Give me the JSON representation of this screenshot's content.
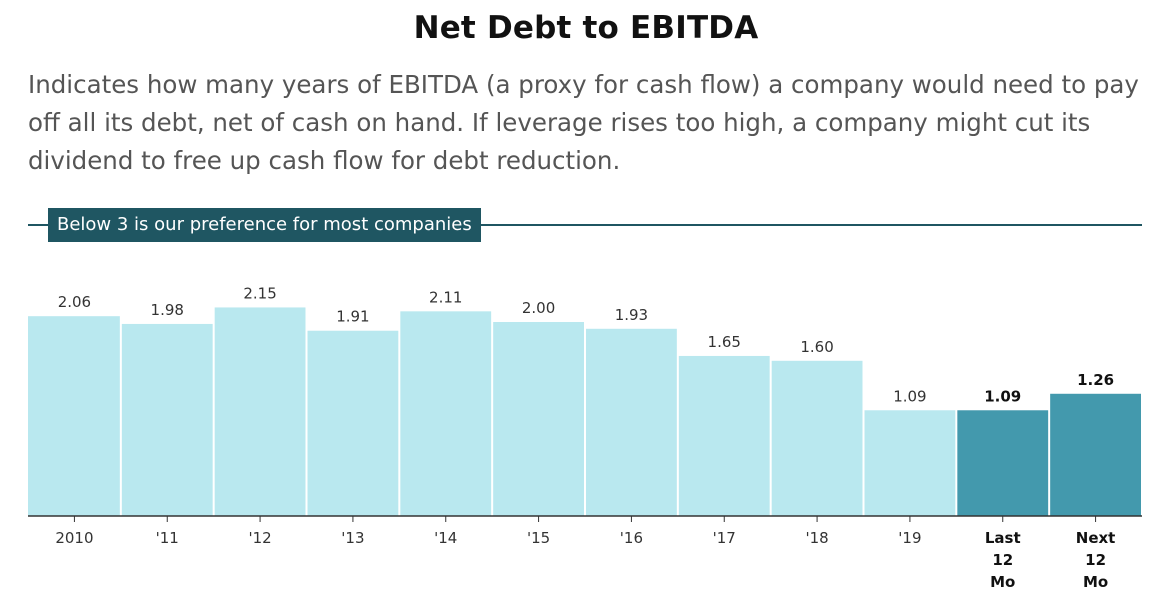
{
  "title": "Net Debt to EBITDA",
  "subtitle": "Indicates how many years of EBITDA (a proxy for cash flow) a company would need to pay off all its debt, net of cash on hand. If leverage rises too high, a company might cut its dividend to free up cash flow for debt reduction.",
  "reference": {
    "label": "Below 3 is our preference for most companies",
    "value": 3
  },
  "colors": {
    "historical_bar": "#b9e8ef",
    "projected_bar": "#4399ad",
    "reference": "#1f5662",
    "axis": "#333333"
  },
  "chart_data": {
    "type": "bar",
    "title": "Net Debt to EBITDA",
    "categories": [
      "2010",
      "'11",
      "'12",
      "'13",
      "'14",
      "'15",
      "'16",
      "'17",
      "'18",
      "'19",
      "Last 12 Mo",
      "Next 12 Mo"
    ],
    "values": [
      2.06,
      1.98,
      2.15,
      1.91,
      2.11,
      2.0,
      1.93,
      1.65,
      1.6,
      1.09,
      1.09,
      1.26
    ],
    "data_labels": [
      "2.06",
      "1.98",
      "2.15",
      "1.91",
      "2.11",
      "2.00",
      "1.93",
      "1.65",
      "1.60",
      "1.09",
      "1.09",
      "1.26"
    ],
    "highlighted": [
      false,
      false,
      false,
      false,
      false,
      false,
      false,
      false,
      false,
      false,
      true,
      true
    ],
    "xlabel": "",
    "ylabel": "",
    "ylim": [
      0,
      3
    ],
    "grid": false,
    "legend": "none"
  }
}
